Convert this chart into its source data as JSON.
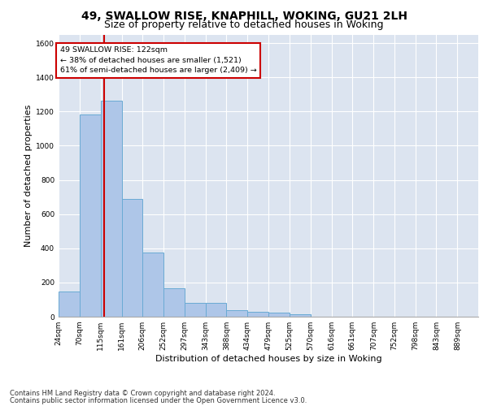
{
  "title1": "49, SWALLOW RISE, KNAPHILL, WOKING, GU21 2LH",
  "title2": "Size of property relative to detached houses in Woking",
  "xlabel": "Distribution of detached houses by size in Woking",
  "ylabel": "Number of detached properties",
  "footnote1": "Contains HM Land Registry data © Crown copyright and database right 2024.",
  "footnote2": "Contains public sector information licensed under the Open Government Licence v3.0.",
  "property_label": "49 SWALLOW RISE: 122sqm",
  "annotation_line1": "← 38% of detached houses are smaller (1,521)",
  "annotation_line2": "61% of semi-detached houses are larger (2,409) →",
  "bar_edges": [
    24,
    70,
    115,
    161,
    206,
    252,
    297,
    343,
    388,
    434,
    479,
    525,
    570,
    616,
    661,
    707,
    752,
    798,
    843,
    889,
    934
  ],
  "bar_heights": [
    148,
    1180,
    1265,
    690,
    375,
    165,
    80,
    80,
    37,
    30,
    22,
    13,
    0,
    0,
    0,
    0,
    0,
    0,
    0,
    0
  ],
  "bar_color": "#aec6e8",
  "bar_edge_color": "#6aaad4",
  "vline_x": 122,
  "vline_color": "#cc0000",
  "ylim": [
    0,
    1650
  ],
  "yticks": [
    0,
    200,
    400,
    600,
    800,
    1000,
    1200,
    1400,
    1600
  ],
  "background_color": "#dce4f0",
  "grid_color": "#ffffff",
  "annotation_box_facecolor": "#ffffff",
  "annotation_box_edgecolor": "#cc0000",
  "title_fontsize": 10,
  "subtitle_fontsize": 9,
  "ylabel_fontsize": 8,
  "xlabel_fontsize": 8,
  "tick_fontsize": 6.5,
  "footnote_fontsize": 6
}
